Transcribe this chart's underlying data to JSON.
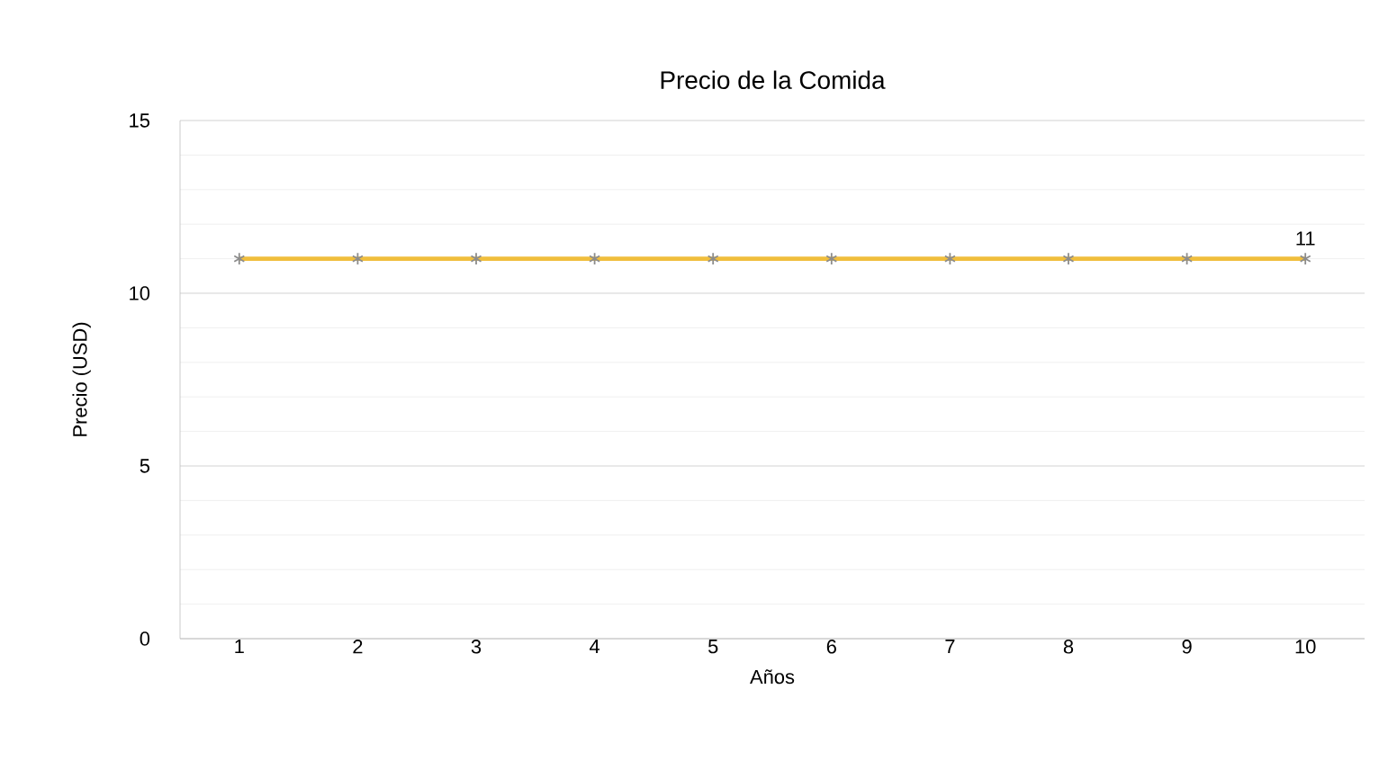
{
  "chart_data": {
    "type": "line",
    "title": "Precio de la Comida",
    "xlabel": "Años",
    "ylabel": "Precio (USD)",
    "categories": [
      "1",
      "2",
      "3",
      "4",
      "5",
      "6",
      "7",
      "8",
      "9",
      "10"
    ],
    "series": [
      {
        "color": "#f0be3c",
        "values": [
          11,
          11,
          11,
          11,
          11,
          11,
          11,
          11,
          11,
          11
        ],
        "value_labels": [
          null,
          null,
          null,
          null,
          null,
          null,
          null,
          null,
          null,
          "11"
        ]
      }
    ],
    "ylim": [
      0,
      15
    ],
    "yticks": [
      0,
      5,
      10,
      15
    ],
    "grid": "y",
    "marker": "cross"
  }
}
